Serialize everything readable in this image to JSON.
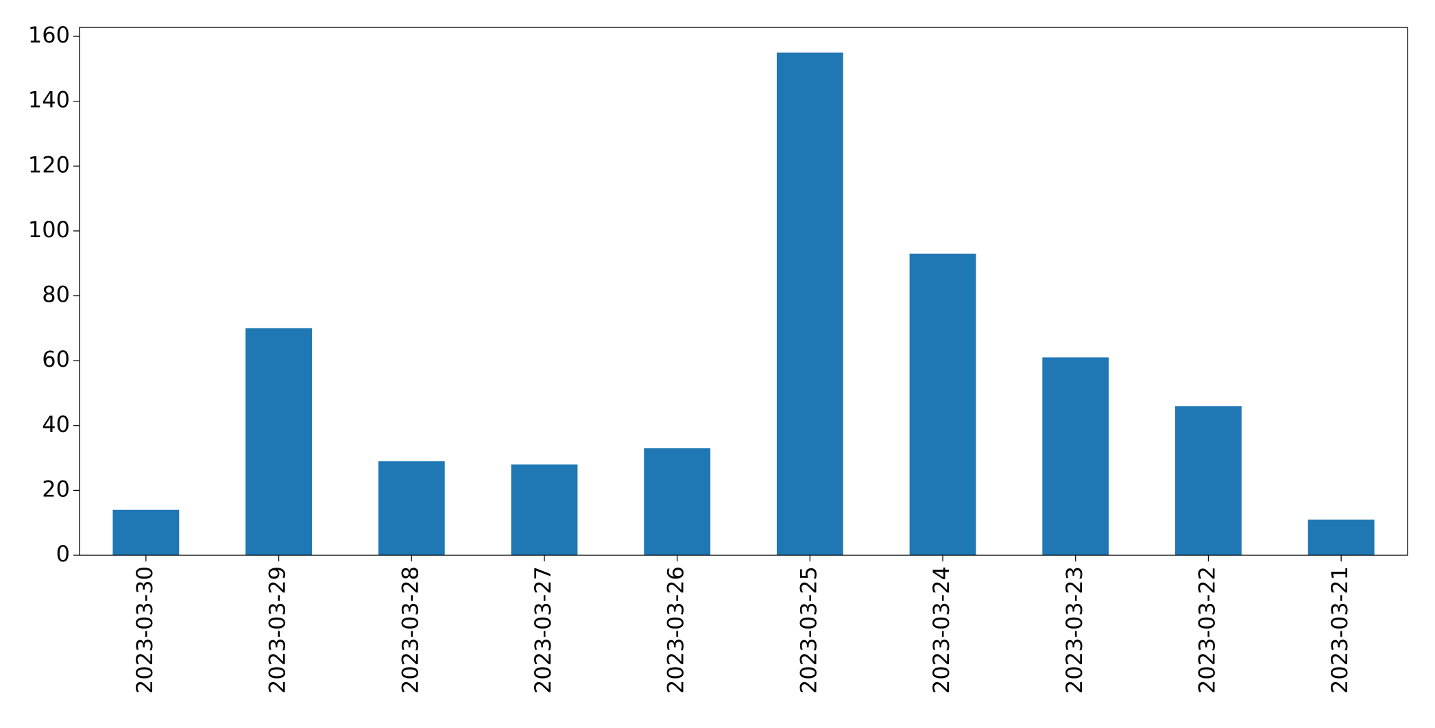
{
  "chart_data": {
    "type": "bar",
    "categories": [
      "2023-03-30",
      "2023-03-29",
      "2023-03-28",
      "2023-03-27",
      "2023-03-26",
      "2023-03-25",
      "2023-03-24",
      "2023-03-23",
      "2023-03-22",
      "2023-03-21"
    ],
    "values": [
      14,
      70,
      29,
      28,
      33,
      155,
      93,
      61,
      46,
      11
    ],
    "color": "#1f77b4",
    "ylim": [
      0,
      162.75
    ],
    "yticks": [
      0,
      20,
      40,
      60,
      80,
      100,
      120,
      140,
      160
    ],
    "grid": false
  }
}
